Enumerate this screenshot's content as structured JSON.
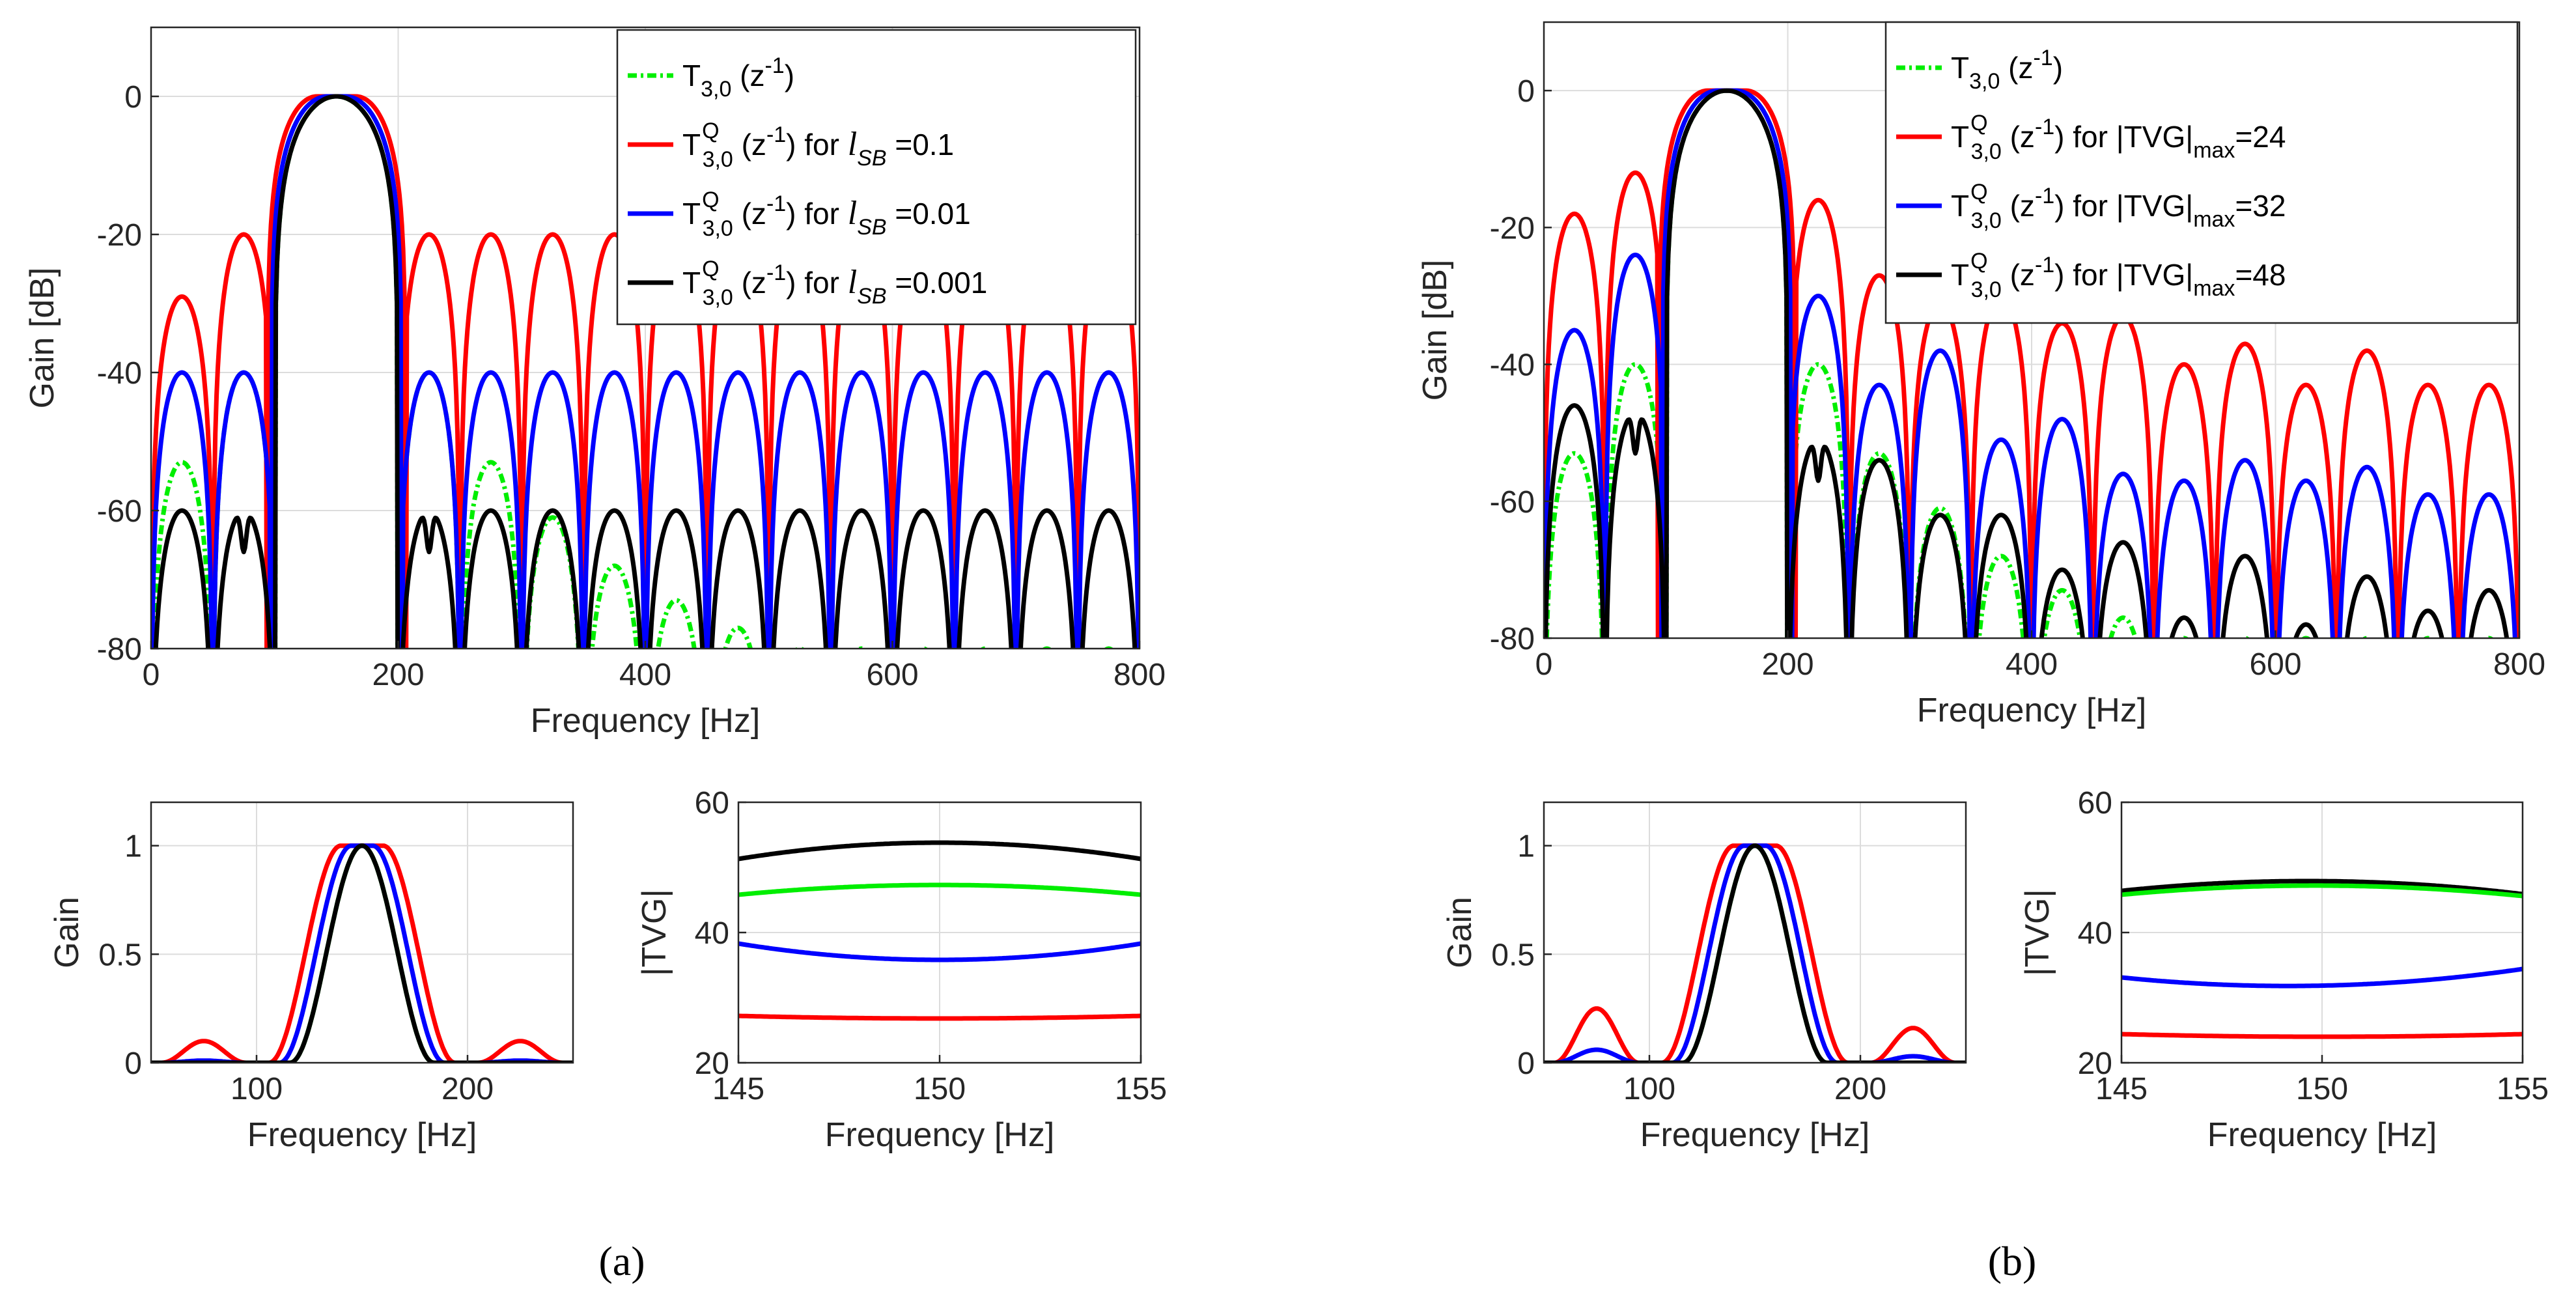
{
  "chart_data": [
    {
      "id": "a_main",
      "type": "line",
      "xlabel": "Frequency [Hz]",
      "ylabel": "Gain [dB]",
      "xlim": [
        0,
        800
      ],
      "ylim": [
        -80,
        10
      ],
      "xticks": [
        0,
        200,
        400,
        600,
        800
      ],
      "yticks": [
        0,
        -20,
        -40,
        -60,
        -80
      ],
      "grid": true,
      "legend_placement": "top-right",
      "series": [
        {
          "name": "T3,0 (z-1)",
          "legend": {
            "main": "T",
            "sub": "3,0",
            "post": " (z",
            "exp": "-1",
            "tail": ")"
          },
          "color": "#00ee00",
          "dash": "14 6 4 6",
          "peaks": [
            -53,
            -40,
            0,
            0,
            -40,
            -53,
            -61,
            -68,
            -73,
            -77,
            -80,
            -80,
            -80,
            -80,
            -80,
            -80
          ],
          "env_width": 2
        },
        {
          "name": "T3,0Q (z-1) for lSB =0.1",
          "legend": {
            "main": "T",
            "sub": "3,0",
            "sup": "Q",
            "post": " (z",
            "exp": "-1",
            "tail": ") for ",
            "var": "l",
            "varsub": "SB",
            "val": " =0.1"
          },
          "color": "#ff0000",
          "peaks": [
            -29,
            -20,
            0,
            0,
            -20,
            -20,
            -20,
            -20,
            -20,
            -20,
            -20,
            -20,
            -20,
            -20,
            -20,
            -20
          ]
        },
        {
          "name": "T3,0Q (z-1) for lSB =0.01",
          "legend": {
            "main": "T",
            "sub": "3,0",
            "sup": "Q",
            "post": " (z",
            "exp": "-1",
            "tail": ") for ",
            "var": "l",
            "varsub": "SB",
            "val": " =0.01"
          },
          "color": "#0000ff",
          "peaks": [
            -40,
            -40,
            0,
            0,
            -40,
            -40,
            -40,
            -40,
            -40,
            -40,
            -40,
            -40,
            -40,
            -40,
            -40,
            -40
          ]
        },
        {
          "name": "T3,0Q (z-1) for lSB =0.001",
          "legend": {
            "main": "T",
            "sub": "3,0",
            "sup": "Q",
            "post": " (z",
            "exp": "-1",
            "tail": ") for ",
            "var": "l",
            "varsub": "SB",
            "val": " =0.001"
          },
          "color": "#000000",
          "peaks": [
            -60,
            -60,
            0,
            0,
            -60,
            -60,
            -60,
            -60,
            -60,
            -60,
            -60,
            -60,
            -60,
            -60,
            -60,
            -60
          ]
        }
      ]
    },
    {
      "id": "b_main",
      "type": "line",
      "xlabel": "Frequency [Hz]",
      "ylabel": "Gain [dB]",
      "xlim": [
        0,
        800
      ],
      "ylim": [
        -80,
        10
      ],
      "xticks": [
        0,
        200,
        400,
        600,
        800
      ],
      "yticks": [
        0,
        -20,
        -40,
        -60,
        -80
      ],
      "grid": true,
      "legend_placement": "top-right",
      "series": [
        {
          "name": "T3,0 (z-1)",
          "legend": {
            "main": "T",
            "sub": "3,0",
            "post": " (z",
            "exp": "-1",
            "tail": ")"
          },
          "color": "#00ee00",
          "dash": "14 6 4 6",
          "peaks": [
            -53,
            -40,
            0,
            0,
            -40,
            -53,
            -61,
            -68,
            -73,
            -77,
            -80,
            -80,
            -80,
            -80,
            -80,
            -80
          ]
        },
        {
          "name": "T3,0Q (z-1) for |TVG|max=24",
          "legend": {
            "main": "T",
            "sub": "3,0",
            "sup": "Q",
            "post": " (z",
            "exp": "-1",
            "tail": ") for ",
            "var": "|TVG|",
            "varsub": "max",
            "val": "=24"
          },
          "color": "#ff0000",
          "peaks": [
            -18,
            -12,
            0,
            0,
            -16,
            -27,
            -31,
            -30,
            -34,
            -33,
            -40,
            -37,
            -43,
            -38,
            -43,
            -43
          ]
        },
        {
          "name": "T3,0Q (z-1) for |TVG|max=32",
          "legend": {
            "main": "T",
            "sub": "3,0",
            "sup": "Q",
            "post": " (z",
            "exp": "-1",
            "tail": ") for ",
            "var": "|TVG|",
            "varsub": "max",
            "val": "=32"
          },
          "color": "#0000ff",
          "peaks": [
            -35,
            -24,
            0,
            0,
            -30,
            -43,
            -38,
            -51,
            -48,
            -56,
            -57,
            -54,
            -57,
            -55,
            -59,
            -59
          ]
        },
        {
          "name": "T3,0Q (z-1) for |TVG|max=48",
          "legend": {
            "main": "T",
            "sub": "3,0",
            "sup": "Q",
            "post": " (z",
            "exp": "-1",
            "tail": ") for ",
            "var": "|TVG|",
            "varsub": "max",
            "val": "=48"
          },
          "color": "#000000",
          "peaks": [
            -46,
            -47,
            0,
            0,
            -51,
            -54,
            -62,
            -62,
            -70,
            -66,
            -77,
            -68,
            -78,
            -71,
            -76,
            -73
          ]
        }
      ]
    },
    {
      "id": "a_gain",
      "type": "line",
      "xlabel": "Frequency [Hz]",
      "ylabel": "Gain",
      "xlim": [
        50,
        250
      ],
      "ylim": [
        0,
        1.2
      ],
      "xticks": [
        100,
        200
      ],
      "yticks": [
        0,
        0.5,
        1
      ],
      "grid": true,
      "series": [
        {
          "color": "#00ee00",
          "center": 150,
          "halfwidth": 22,
          "flat": 0,
          "side": 0
        },
        {
          "color": "#ff0000",
          "center": 150,
          "halfwidth": 22,
          "flat": 10,
          "side": 0.1
        },
        {
          "color": "#0000ff",
          "center": 150,
          "halfwidth": 22,
          "flat": 5,
          "side": 0.01
        },
        {
          "color": "#000000",
          "center": 150,
          "halfwidth": 22,
          "flat": 0,
          "side": 0
        }
      ]
    },
    {
      "id": "a_tvg",
      "type": "line",
      "xlabel": "Frequency [Hz]",
      "ylabel": "|TVG|",
      "xlim": [
        145,
        155
      ],
      "ylim": [
        20,
        60
      ],
      "xticks": [
        145,
        150,
        155
      ],
      "yticks": [
        20,
        40,
        60
      ],
      "grid": true,
      "series": [
        {
          "color": "#000000",
          "x": [
            145,
            150,
            155
          ],
          "y": [
            51.3,
            53.8,
            51.3
          ]
        },
        {
          "color": "#00ee00",
          "x": [
            145,
            150,
            155
          ],
          "y": [
            45.8,
            47.3,
            45.8
          ]
        },
        {
          "color": "#0000ff",
          "x": [
            145,
            150,
            155
          ],
          "y": [
            38.3,
            35.8,
            38.3
          ]
        },
        {
          "color": "#ff0000",
          "x": [
            145,
            150,
            155
          ],
          "y": [
            27.2,
            26.8,
            27.2
          ]
        }
      ]
    },
    {
      "id": "b_gain",
      "type": "line",
      "xlabel": "Frequency [Hz]",
      "ylabel": "Gain",
      "xlim": [
        50,
        250
      ],
      "ylim": [
        0,
        1.2
      ],
      "xticks": [
        100,
        200
      ],
      "yticks": [
        0,
        0.5,
        1
      ],
      "grid": true,
      "series": [
        {
          "color": "#00ee00",
          "center": 150,
          "halfwidth": 22,
          "flat": 0,
          "side": 0
        },
        {
          "color": "#ff0000",
          "center": 150,
          "halfwidth": 22,
          "flat": 10,
          "side": 0.25,
          "side2": 0.16
        },
        {
          "color": "#0000ff",
          "center": 150,
          "halfwidth": 22,
          "flat": 5,
          "side": 0.06,
          "side2": 0.03
        },
        {
          "color": "#000000",
          "center": 150,
          "halfwidth": 22,
          "flat": 0,
          "side": 0
        }
      ]
    },
    {
      "id": "b_tvg",
      "type": "line",
      "xlabel": "Frequency [Hz]",
      "ylabel": "|TVG|",
      "xlim": [
        145,
        155
      ],
      "ylim": [
        20,
        60
      ],
      "xticks": [
        145,
        150,
        155
      ],
      "yticks": [
        20,
        40,
        60
      ],
      "grid": true,
      "series": [
        {
          "color": "#000000",
          "x": [
            145,
            149.5,
            155
          ],
          "y": [
            46.4,
            47.9,
            45.9
          ]
        },
        {
          "color": "#00ee00",
          "x": [
            145,
            149.5,
            155
          ],
          "y": [
            45.8,
            47.2,
            45.6
          ]
        },
        {
          "color": "#0000ff",
          "x": [
            145,
            149.5,
            155
          ],
          "y": [
            33.1,
            31.8,
            34.4
          ]
        },
        {
          "color": "#ff0000",
          "x": [
            145,
            149.5,
            155
          ],
          "y": [
            24.4,
            24.0,
            24.4
          ]
        }
      ]
    }
  ],
  "labels": {
    "a": "(a)",
    "b": "(b)"
  }
}
